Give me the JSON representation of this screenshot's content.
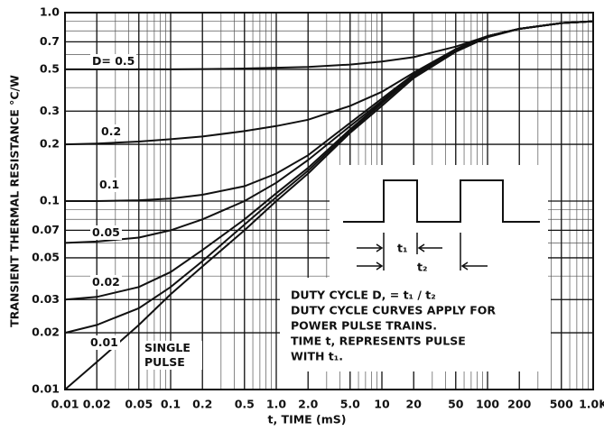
{
  "chart_data": {
    "type": "line",
    "xlabel": "t, TIME (mS)",
    "ylabel": "TRANSIENT THERMAL RESISTANCE °C/W",
    "log_x": true,
    "log_y": true,
    "grid": true,
    "color": "#111111",
    "x": [
      0.01,
      0.02,
      0.05,
      0.1,
      0.2,
      0.5,
      1,
      2,
      5,
      10,
      20,
      50,
      100,
      200,
      500,
      1000
    ],
    "series": [
      {
        "name": "D= 0.5",
        "color": "#111111",
        "values": [
          0.5,
          0.5,
          0.5,
          0.5,
          0.502,
          0.505,
          0.51,
          0.515,
          0.53,
          0.55,
          0.58,
          0.66,
          0.75,
          0.82,
          0.88,
          0.9
        ]
      },
      {
        "name": "0.2",
        "color": "#111111",
        "values": [
          0.2,
          0.202,
          0.207,
          0.213,
          0.22,
          0.235,
          0.25,
          0.27,
          0.32,
          0.38,
          0.48,
          0.64,
          0.75,
          0.82,
          0.88,
          0.9
        ]
      },
      {
        "name": "0.1",
        "color": "#111111",
        "values": [
          0.1,
          0.1,
          0.101,
          0.103,
          0.108,
          0.12,
          0.14,
          0.175,
          0.26,
          0.35,
          0.47,
          0.64,
          0.75,
          0.82,
          0.88,
          0.9
        ]
      },
      {
        "name": "0.05",
        "color": "#111111",
        "values": [
          0.06,
          0.061,
          0.064,
          0.07,
          0.08,
          0.1,
          0.125,
          0.165,
          0.25,
          0.34,
          0.47,
          0.64,
          0.75,
          0.82,
          0.88,
          0.9
        ]
      },
      {
        "name": "0.02",
        "color": "#111111",
        "values": [
          0.03,
          0.031,
          0.035,
          0.042,
          0.055,
          0.08,
          0.11,
          0.15,
          0.24,
          0.335,
          0.46,
          0.63,
          0.75,
          0.82,
          0.88,
          0.9
        ]
      },
      {
        "name": "0.01",
        "color": "#111111",
        "values": [
          0.02,
          0.022,
          0.027,
          0.035,
          0.048,
          0.075,
          0.105,
          0.145,
          0.235,
          0.33,
          0.46,
          0.63,
          0.75,
          0.82,
          0.88,
          0.9
        ]
      },
      {
        "name": "SINGLE PULSE",
        "color": "#111111",
        "values": [
          0.01,
          0.014,
          0.022,
          0.032,
          0.045,
          0.07,
          0.1,
          0.14,
          0.23,
          0.32,
          0.45,
          0.62,
          0.74,
          0.82,
          0.88,
          0.9
        ]
      }
    ],
    "xlim": [
      0.01,
      1000
    ],
    "ylim": [
      0.01,
      1
    ],
    "xticks": [
      0.01,
      0.02,
      0.05,
      0.1,
      0.2,
      0.5,
      {
        "value": 1,
        "label": "1.0"
      },
      {
        "value": 2,
        "label": "2.0"
      },
      {
        "value": 5,
        "label": "5.0"
      },
      10,
      20,
      50,
      100,
      200,
      500,
      {
        "value": 1000,
        "label": "1.0K"
      }
    ],
    "yticks": [
      0.01,
      0.02,
      0.03,
      0.05,
      0.07,
      0.1,
      0.2,
      0.3,
      0.5,
      0.7,
      {
        "value": 1,
        "label": "1.0"
      }
    ],
    "inset": {
      "t1": "t₁",
      "t2": "t₂",
      "lines": [
        "DUTY CYCLE D, = t₁ / t₂",
        "DUTY CYCLE CURVES APPLY FOR",
        "POWER PULSE TRAINS.",
        "TIME t, REPRESENTS PULSE",
        "WITH t₁."
      ]
    }
  }
}
